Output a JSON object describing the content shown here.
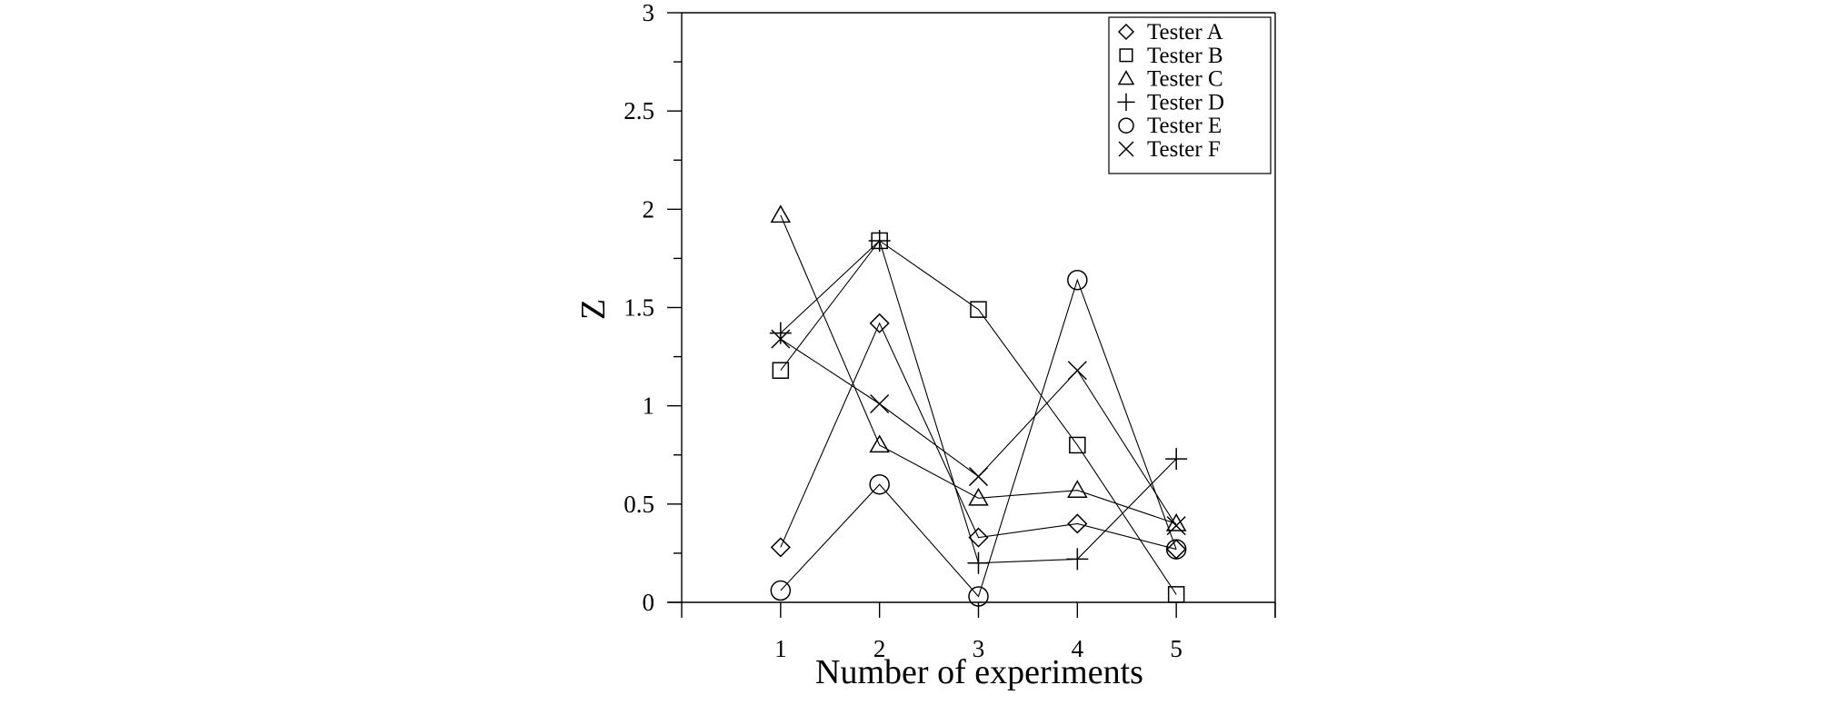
{
  "chart_data": {
    "type": "line",
    "title": "",
    "xlabel": "Number of experiments",
    "ylabel": "Z",
    "xlim": [
      0,
      6
    ],
    "ylim": [
      0,
      3
    ],
    "x_ticks": [
      1,
      2,
      3,
      4,
      5
    ],
    "x_tick_labels": [
      "1",
      "2",
      "3",
      "4",
      "5"
    ],
    "y_ticks": [
      0,
      0.5,
      1,
      1.5,
      2,
      2.5,
      3
    ],
    "y_tick_labels": [
      "0",
      "0.5",
      "1",
      "1.5",
      "2",
      "2.5",
      "3"
    ],
    "y_minor_step": 0.25,
    "grid": false,
    "legend_position": "top-right",
    "x": [
      1,
      2,
      3,
      4,
      5
    ],
    "series": [
      {
        "name": "Tester A",
        "marker": "diamond",
        "values": [
          0.28,
          1.42,
          0.33,
          0.4,
          0.27
        ]
      },
      {
        "name": "Tester B",
        "marker": "square",
        "values": [
          1.18,
          1.84,
          1.49,
          0.8,
          0.04
        ]
      },
      {
        "name": "Tester C",
        "marker": "triangle",
        "values": [
          1.97,
          0.8,
          0.53,
          0.57,
          0.4
        ]
      },
      {
        "name": "Tester D",
        "marker": "plus",
        "values": [
          1.37,
          1.84,
          0.2,
          0.22,
          0.73
        ]
      },
      {
        "name": "Tester E",
        "marker": "circle",
        "values": [
          0.06,
          0.6,
          0.03,
          1.64,
          0.27
        ]
      },
      {
        "name": "Tester F",
        "marker": "x",
        "values": [
          1.34,
          1.01,
          0.64,
          1.18,
          0.39
        ]
      }
    ]
  }
}
